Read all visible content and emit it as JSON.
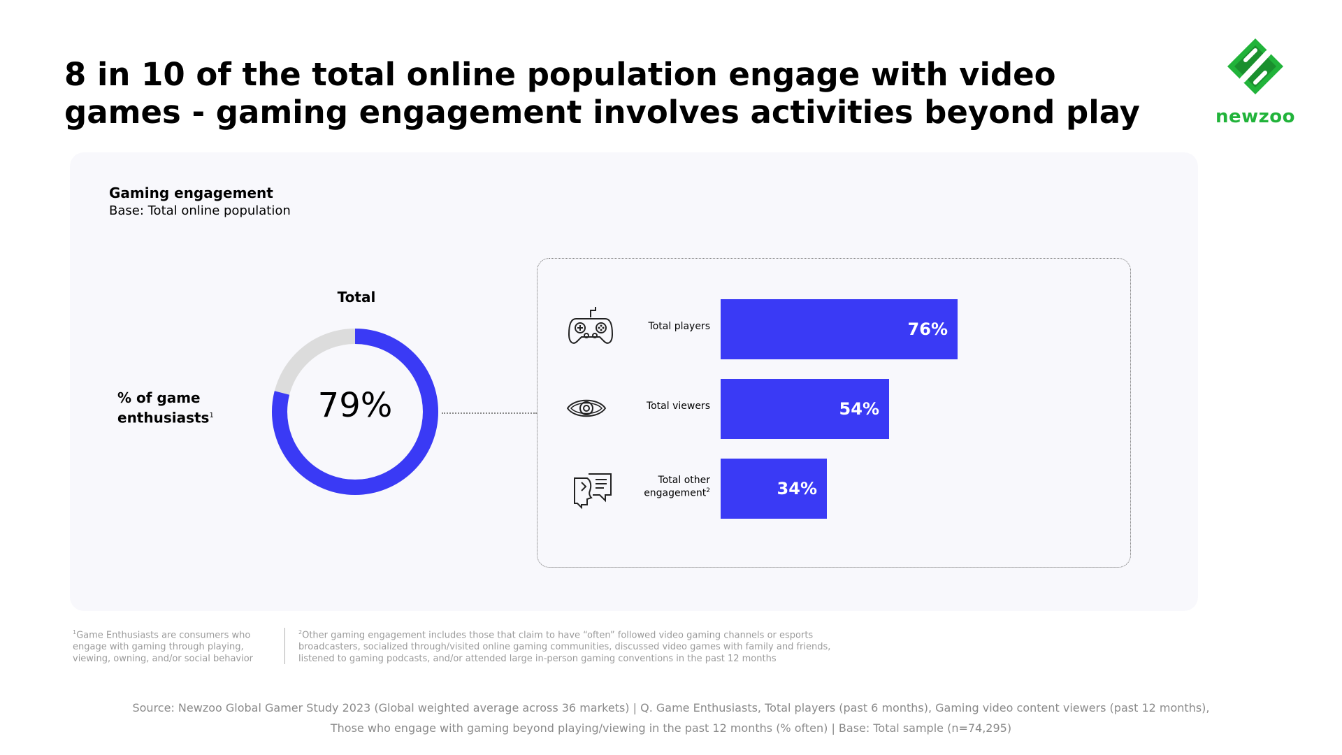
{
  "title": {
    "line1": "8 in 10 of the total online population engage with video",
    "line2": "games -  gaming engagement involves activities beyond play"
  },
  "logo": {
    "text": "newzoo",
    "color": "#21b33a"
  },
  "chart_header": {
    "title": "Gaming engagement",
    "base": "Base: Total online population"
  },
  "donut": {
    "heading": "Total",
    "label_line1": "% of game",
    "label_line2": "enthusiasts",
    "label_sup": "1",
    "value_text": "79%",
    "value": 79,
    "color": "#3a3af5",
    "track_color": "#dcdcdc"
  },
  "chart_data": {
    "type": "bar",
    "orientation": "horizontal",
    "categories": [
      "Total players",
      "Total viewers",
      "Total other engagement"
    ],
    "values": [
      76,
      54,
      34
    ],
    "value_labels": [
      "76%",
      "54%",
      "34%"
    ],
    "unit": "%",
    "color": "#3a3af5",
    "icons": [
      "gamepad-icon",
      "eye-icon",
      "discussion-icon"
    ]
  },
  "bar_labels": {
    "players": "Total players",
    "viewers": "Total viewers",
    "other_line1": "Total other",
    "other_line2": "engagement",
    "other_sup": "2"
  },
  "footnotes": {
    "f1_sup": "1",
    "f1_line1": "Game Enthusiasts are consumers who",
    "f1_line2": "engage with gaming through playing,",
    "f1_line3": "viewing, owning, and/or social behavior",
    "f2_sup": "2",
    "f2_line1": "Other gaming engagement includes those that claim to have “often” followed video gaming channels or esports",
    "f2_line2": "broadcasters, socialized through/visited online gaming communities, discussed video games with family and friends,",
    "f2_line3": "listened to gaming podcasts, and/or attended large in-person gaming conventions in the past 12 months"
  },
  "source": {
    "line1": "Source: Newzoo Global Gamer Study 2023 (Global weighted average across 36 markets)  |  Q. Game Enthusiasts, Total players (past 6 months), Gaming video content viewers (past 12 months),",
    "line2": "Those who engage with gaming beyond playing/viewing in the past 12 months (% often)  |  Base: Total sample (n=74,295)"
  }
}
